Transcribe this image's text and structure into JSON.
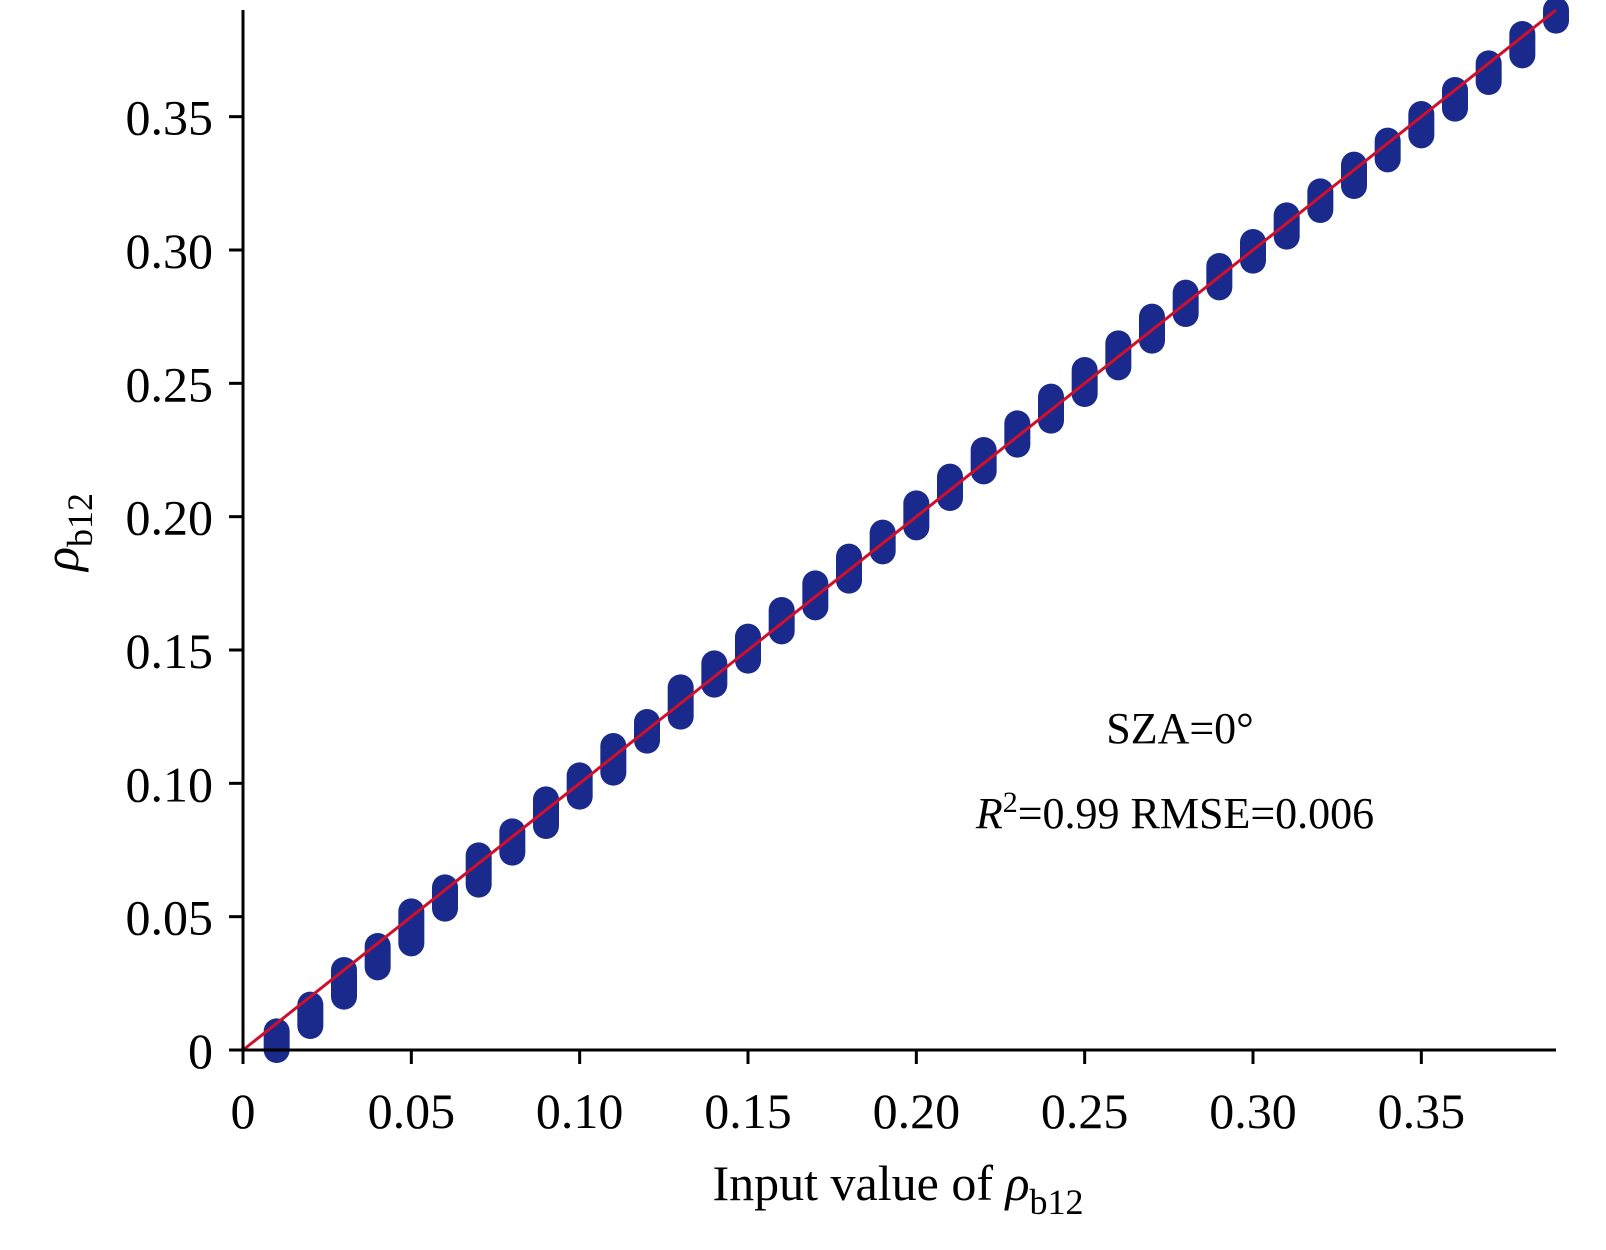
{
  "chart_data": {
    "type": "scatter",
    "xlabel": {
      "main": "Input value of ",
      "symbol": "ρ",
      "sub": "b12"
    },
    "ylabel": {
      "symbol": "ρ",
      "sub": "b12"
    },
    "xlim": [
      0,
      0.39
    ],
    "ylim": [
      0,
      0.39
    ],
    "x_ticks": [
      0,
      0.05,
      0.1,
      0.15,
      0.2,
      0.25,
      0.3,
      0.35
    ],
    "x_tick_labels": [
      "0",
      "0.05",
      "0.10",
      "0.15",
      "0.20",
      "0.25",
      "0.30",
      "0.35"
    ],
    "y_ticks": [
      0,
      0.05,
      0.1,
      0.15,
      0.2,
      0.25,
      0.3,
      0.35
    ],
    "y_tick_labels": [
      "0",
      "0.05",
      "0.10",
      "0.15",
      "0.20",
      "0.25",
      "0.30",
      "0.35"
    ],
    "grid": false,
    "annotations": {
      "sza": "SZA=0°",
      "r_symbol": "R",
      "r_sup": "2",
      "stats": "=0.99 RMSE=0.006"
    },
    "series": [
      {
        "kind": "scatter",
        "color": "#1a2a8c",
        "points": [
          {
            "x": 0.01,
            "y_min": 0.0,
            "y_max": 0.007
          },
          {
            "x": 0.02,
            "y_min": 0.009,
            "y_max": 0.017
          },
          {
            "x": 0.03,
            "y_min": 0.02,
            "y_max": 0.03
          },
          {
            "x": 0.04,
            "y_min": 0.031,
            "y_max": 0.039
          },
          {
            "x": 0.05,
            "y_min": 0.04,
            "y_max": 0.052
          },
          {
            "x": 0.06,
            "y_min": 0.053,
            "y_max": 0.061
          },
          {
            "x": 0.07,
            "y_min": 0.062,
            "y_max": 0.073
          },
          {
            "x": 0.08,
            "y_min": 0.074,
            "y_max": 0.082
          },
          {
            "x": 0.09,
            "y_min": 0.084,
            "y_max": 0.094
          },
          {
            "x": 0.1,
            "y_min": 0.095,
            "y_max": 0.103
          },
          {
            "x": 0.11,
            "y_min": 0.104,
            "y_max": 0.114
          },
          {
            "x": 0.12,
            "y_min": 0.116,
            "y_max": 0.123
          },
          {
            "x": 0.13,
            "y_min": 0.125,
            "y_max": 0.136
          },
          {
            "x": 0.14,
            "y_min": 0.137,
            "y_max": 0.145
          },
          {
            "x": 0.15,
            "y_min": 0.146,
            "y_max": 0.155
          },
          {
            "x": 0.16,
            "y_min": 0.157,
            "y_max": 0.165
          },
          {
            "x": 0.17,
            "y_min": 0.166,
            "y_max": 0.175
          },
          {
            "x": 0.18,
            "y_min": 0.176,
            "y_max": 0.185
          },
          {
            "x": 0.19,
            "y_min": 0.187,
            "y_max": 0.194
          },
          {
            "x": 0.2,
            "y_min": 0.196,
            "y_max": 0.205
          },
          {
            "x": 0.21,
            "y_min": 0.207,
            "y_max": 0.215
          },
          {
            "x": 0.22,
            "y_min": 0.217,
            "y_max": 0.225
          },
          {
            "x": 0.23,
            "y_min": 0.227,
            "y_max": 0.235
          },
          {
            "x": 0.24,
            "y_min": 0.236,
            "y_max": 0.245
          },
          {
            "x": 0.25,
            "y_min": 0.246,
            "y_max": 0.255
          },
          {
            "x": 0.26,
            "y_min": 0.256,
            "y_max": 0.265
          },
          {
            "x": 0.27,
            "y_min": 0.266,
            "y_max": 0.275
          },
          {
            "x": 0.28,
            "y_min": 0.276,
            "y_max": 0.284
          },
          {
            "x": 0.29,
            "y_min": 0.286,
            "y_max": 0.294
          },
          {
            "x": 0.3,
            "y_min": 0.296,
            "y_max": 0.303
          },
          {
            "x": 0.31,
            "y_min": 0.305,
            "y_max": 0.313
          },
          {
            "x": 0.32,
            "y_min": 0.315,
            "y_max": 0.322
          },
          {
            "x": 0.33,
            "y_min": 0.324,
            "y_max": 0.332
          },
          {
            "x": 0.34,
            "y_min": 0.334,
            "y_max": 0.341
          },
          {
            "x": 0.35,
            "y_min": 0.343,
            "y_max": 0.351
          },
          {
            "x": 0.36,
            "y_min": 0.353,
            "y_max": 0.36
          },
          {
            "x": 0.37,
            "y_min": 0.363,
            "y_max": 0.37
          },
          {
            "x": 0.38,
            "y_min": 0.373,
            "y_max": 0.381
          },
          {
            "x": 0.39,
            "y_min": 0.386,
            "y_max": 0.39
          }
        ]
      },
      {
        "kind": "line",
        "color": "#d0102a",
        "x": [
          0,
          0.39
        ],
        "y": [
          0,
          0.39
        ]
      }
    ]
  }
}
